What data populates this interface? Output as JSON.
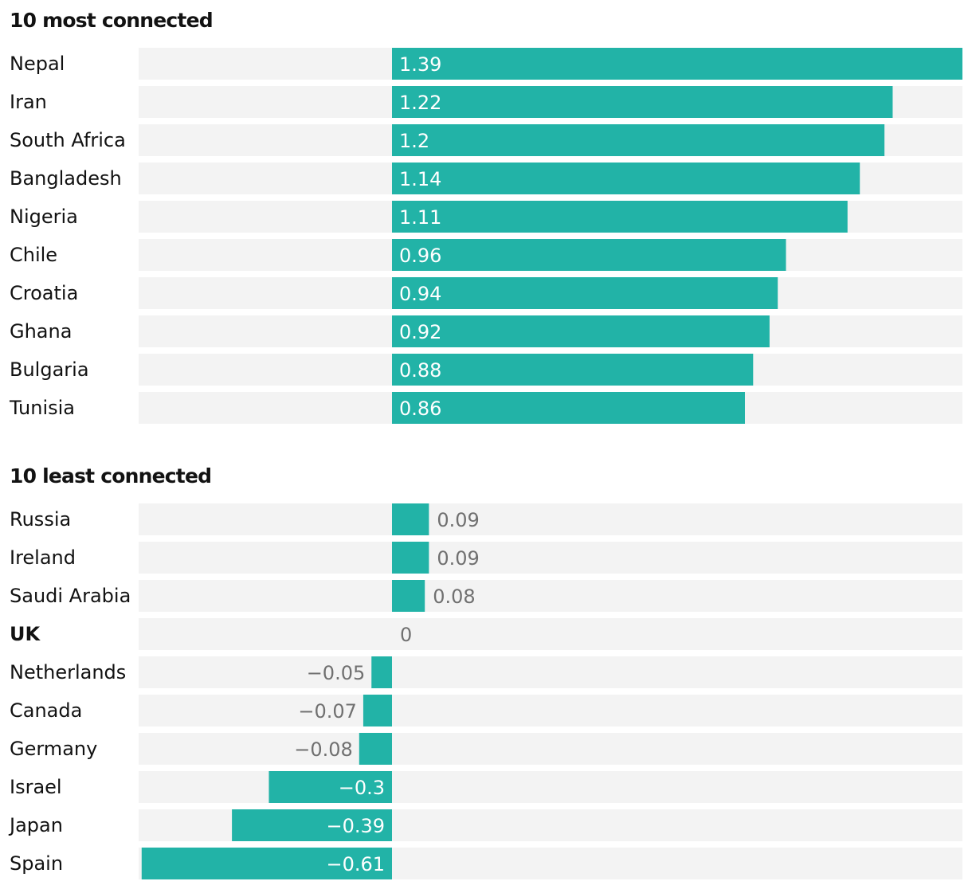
{
  "chart_data": {
    "type": "bar",
    "orientation": "horizontal",
    "value_range": [
      -0.61,
      1.39
    ],
    "colors": {
      "bar": "#22b3a7",
      "track": "#f3f3f3",
      "label_inside": "#ffffff",
      "label_outside": "#707070",
      "text": "#121212"
    },
    "panels": [
      {
        "title": "10 most connected",
        "rows": [
          {
            "country": "Nepal",
            "value": 1.39,
            "label": "1.39"
          },
          {
            "country": "Iran",
            "value": 1.22,
            "label": "1.22"
          },
          {
            "country": "South Africa",
            "value": 1.2,
            "label": "1.2"
          },
          {
            "country": "Bangladesh",
            "value": 1.14,
            "label": "1.14"
          },
          {
            "country": "Nigeria",
            "value": 1.11,
            "label": "1.11"
          },
          {
            "country": "Chile",
            "value": 0.96,
            "label": "0.96"
          },
          {
            "country": "Croatia",
            "value": 0.94,
            "label": "0.94"
          },
          {
            "country": "Ghana",
            "value": 0.92,
            "label": "0.92"
          },
          {
            "country": "Bulgaria",
            "value": 0.88,
            "label": "0.88"
          },
          {
            "country": "Tunisia",
            "value": 0.86,
            "label": "0.86"
          }
        ]
      },
      {
        "title": "10 least connected",
        "rows": [
          {
            "country": "Russia",
            "value": 0.09,
            "label": "0.09"
          },
          {
            "country": "Ireland",
            "value": 0.09,
            "label": "0.09"
          },
          {
            "country": "Saudi Arabia",
            "value": 0.08,
            "label": "0.08"
          },
          {
            "country": "UK",
            "value": 0,
            "label": "0",
            "highlight": true
          },
          {
            "country": "Netherlands",
            "value": -0.05,
            "label": "−0.05"
          },
          {
            "country": "Canada",
            "value": -0.07,
            "label": "−0.07"
          },
          {
            "country": "Germany",
            "value": -0.08,
            "label": "−0.08"
          },
          {
            "country": "Israel",
            "value": -0.3,
            "label": "−0.3"
          },
          {
            "country": "Japan",
            "value": -0.39,
            "label": "−0.39"
          },
          {
            "country": "Spain",
            "value": -0.61,
            "label": "−0.61"
          }
        ]
      }
    ]
  }
}
